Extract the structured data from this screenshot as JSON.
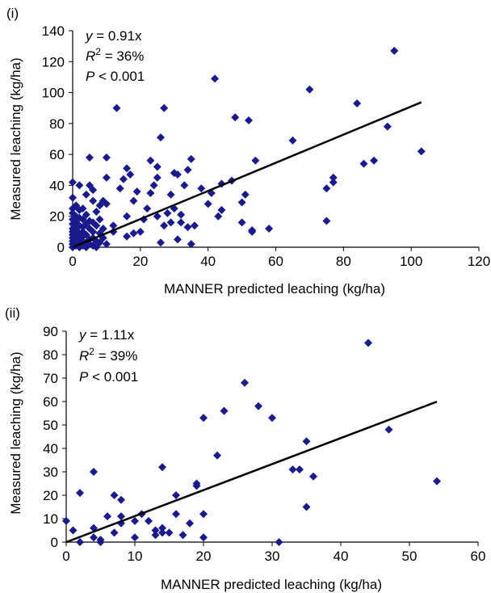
{
  "chart_data": [
    {
      "type": "scatter",
      "panel_label": "(i)",
      "xlabel": "MANNER predicted leaching (kg/ha)",
      "ylabel": "Measured leaching (kg/ha)",
      "xlim": [
        0,
        120
      ],
      "ylim": [
        0,
        140
      ],
      "x_ticks": [
        "0",
        "20",
        "40",
        "60",
        "80",
        "100",
        "120"
      ],
      "y_ticks": [
        "0",
        "20",
        "40",
        "60",
        "80",
        "100",
        "120",
        "140"
      ],
      "grid": false,
      "annotations": {
        "equation_italic": "y",
        "equation_rest": " = 0.91x",
        "r2_italic": "R",
        "r2_sup": "2",
        "r2_rest": " = 36%",
        "p_italic": "P",
        "p_rest": " < 0.001"
      },
      "fit_line": {
        "slope": 0.91,
        "x_range": [
          0,
          103
        ]
      },
      "marker_color": "#1a1a8c",
      "points": [
        [
          0,
          0
        ],
        [
          0,
          2
        ],
        [
          0,
          4
        ],
        [
          0,
          6
        ],
        [
          0,
          8
        ],
        [
          0,
          10
        ],
        [
          0,
          12
        ],
        [
          0,
          15
        ],
        [
          0,
          18
        ],
        [
          0,
          22
        ],
        [
          0,
          25
        ],
        [
          0,
          32
        ],
        [
          0,
          42
        ],
        [
          1,
          1
        ],
        [
          1,
          3
        ],
        [
          1,
          5
        ],
        [
          1,
          8
        ],
        [
          1,
          12
        ],
        [
          1,
          16
        ],
        [
          1,
          20
        ],
        [
          1,
          27
        ],
        [
          2,
          0
        ],
        [
          2,
          2
        ],
        [
          2,
          6
        ],
        [
          2,
          9
        ],
        [
          2,
          14
        ],
        [
          2,
          19
        ],
        [
          2,
          24
        ],
        [
          2,
          40
        ],
        [
          3,
          1
        ],
        [
          3,
          4
        ],
        [
          3,
          7
        ],
        [
          3,
          10
        ],
        [
          3,
          13
        ],
        [
          3,
          18
        ],
        [
          3,
          25
        ],
        [
          4,
          0
        ],
        [
          4,
          3
        ],
        [
          4,
          8
        ],
        [
          4,
          15
        ],
        [
          4,
          21
        ],
        [
          4,
          34
        ],
        [
          5,
          2
        ],
        [
          5,
          5
        ],
        [
          5,
          12
        ],
        [
          5,
          17
        ],
        [
          5,
          40
        ],
        [
          5,
          58
        ],
        [
          6,
          1
        ],
        [
          6,
          6
        ],
        [
          6,
          10
        ],
        [
          6,
          16
        ],
        [
          6,
          30
        ],
        [
          6,
          37
        ],
        [
          7,
          0
        ],
        [
          7,
          4
        ],
        [
          7,
          14
        ],
        [
          7,
          23
        ],
        [
          8,
          3
        ],
        [
          8,
          9
        ],
        [
          8,
          18
        ],
        [
          8,
          27
        ],
        [
          9,
          6
        ],
        [
          9,
          12
        ],
        [
          9,
          30
        ],
        [
          10,
          2
        ],
        [
          10,
          28
        ],
        [
          10,
          45
        ],
        [
          10,
          58
        ],
        [
          12,
          10
        ],
        [
          12,
          14
        ],
        [
          13,
          90
        ],
        [
          14,
          38
        ],
        [
          15,
          44
        ],
        [
          16,
          7
        ],
        [
          16,
          20
        ],
        [
          16,
          51
        ],
        [
          17,
          47
        ],
        [
          18,
          9
        ],
        [
          18,
          30
        ],
        [
          19,
          36
        ],
        [
          20,
          10
        ],
        [
          21,
          18
        ],
        [
          22,
          25
        ],
        [
          23,
          56
        ],
        [
          23,
          35
        ],
        [
          24,
          40
        ],
        [
          25,
          20
        ],
        [
          25,
          45
        ],
        [
          25,
          52
        ],
        [
          26,
          3
        ],
        [
          26,
          71
        ],
        [
          27,
          90
        ],
        [
          27,
          14
        ],
        [
          28,
          22
        ],
        [
          29,
          16
        ],
        [
          29,
          34
        ],
        [
          30,
          25
        ],
        [
          30,
          48
        ],
        [
          31,
          5
        ],
        [
          31,
          47
        ],
        [
          32,
          16
        ],
        [
          32,
          21
        ],
        [
          33,
          40
        ],
        [
          34,
          13
        ],
        [
          34,
          50
        ],
        [
          35,
          57
        ],
        [
          35,
          2
        ],
        [
          36,
          14
        ],
        [
          38,
          38
        ],
        [
          40,
          28
        ],
        [
          41,
          35
        ],
        [
          42,
          109
        ],
        [
          43,
          20
        ],
        [
          44,
          24
        ],
        [
          44,
          41
        ],
        [
          47,
          43
        ],
        [
          48,
          84
        ],
        [
          50,
          16
        ],
        [
          50,
          29
        ],
        [
          51,
          34
        ],
        [
          52,
          82
        ],
        [
          53,
          10
        ],
        [
          53,
          11
        ],
        [
          54,
          56
        ],
        [
          58,
          12
        ],
        [
          65,
          69
        ],
        [
          70,
          102
        ],
        [
          75,
          17
        ],
        [
          75,
          38
        ],
        [
          77,
          42
        ],
        [
          77,
          45
        ],
        [
          84,
          93
        ],
        [
          86,
          54
        ],
        [
          89,
          56
        ],
        [
          93,
          78
        ],
        [
          95,
          127
        ],
        [
          103,
          62
        ]
      ]
    },
    {
      "type": "scatter",
      "panel_label": "(ii)",
      "xlabel": "MANNER predicted leaching (kg/ha)",
      "ylabel": "Measured leaching (kg/ha)",
      "xlim": [
        0,
        60
      ],
      "ylim": [
        0,
        90
      ],
      "x_ticks": [
        "0",
        "10",
        "20",
        "30",
        "40",
        "50",
        "60"
      ],
      "y_ticks": [
        "0",
        "10",
        "20",
        "30",
        "40",
        "50",
        "60",
        "70",
        "80",
        "90"
      ],
      "grid": false,
      "annotations": {
        "equation_italic": "y",
        "equation_rest": " = 1.11x",
        "r2_italic": "R",
        "r2_sup": "2",
        "r2_rest": " = 39%",
        "p_italic": "P",
        "p_rest": " < 0.001"
      },
      "fit_line": {
        "slope": 1.11,
        "x_range": [
          0,
          54
        ]
      },
      "marker_color": "#1a1a8c",
      "points": [
        [
          0,
          9
        ],
        [
          1,
          5
        ],
        [
          2,
          21
        ],
        [
          2,
          0
        ],
        [
          4,
          30
        ],
        [
          4,
          6
        ],
        [
          4,
          2
        ],
        [
          5,
          0
        ],
        [
          5,
          1
        ],
        [
          6,
          11
        ],
        [
          7,
          20
        ],
        [
          7,
          4
        ],
        [
          8,
          18
        ],
        [
          8,
          11
        ],
        [
          8,
          8
        ],
        [
          10,
          9
        ],
        [
          10,
          2
        ],
        [
          11,
          12
        ],
        [
          12,
          9
        ],
        [
          13,
          5
        ],
        [
          13,
          3
        ],
        [
          14,
          32
        ],
        [
          14,
          4
        ],
        [
          14,
          6
        ],
        [
          15,
          4
        ],
        [
          16,
          20
        ],
        [
          16,
          12
        ],
        [
          17,
          3
        ],
        [
          18,
          8
        ],
        [
          19,
          25
        ],
        [
          19,
          24
        ],
        [
          20,
          12
        ],
        [
          20,
          53
        ],
        [
          20,
          2
        ],
        [
          22,
          37
        ],
        [
          23,
          56
        ],
        [
          26,
          68
        ],
        [
          28,
          58
        ],
        [
          30,
          53
        ],
        [
          31,
          0
        ],
        [
          33,
          31
        ],
        [
          34,
          31
        ],
        [
          35,
          15
        ],
        [
          35,
          43
        ],
        [
          36,
          28
        ],
        [
          44,
          85
        ],
        [
          47,
          48
        ],
        [
          54,
          26
        ]
      ]
    }
  ]
}
